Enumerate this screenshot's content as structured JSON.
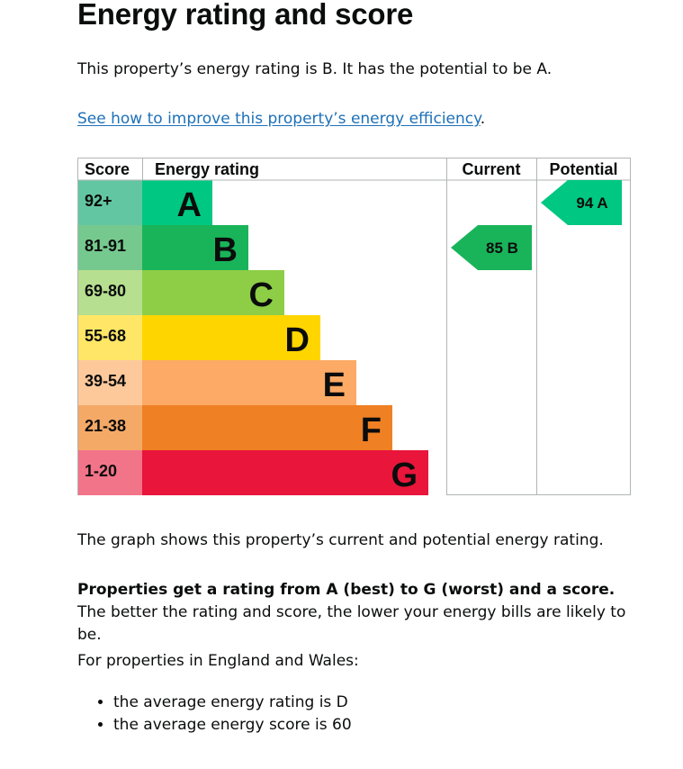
{
  "page": {
    "title": "Energy rating and score",
    "intro": "This property’s energy rating is B. It has the potential to be A.",
    "link_text": "See how to improve this property’s energy efficiency",
    "link_suffix": ".",
    "graph_caption": "The graph shows this property’s current and potential energy rating.",
    "ratings_bold": "Properties get a rating from A (best) to G (worst) and a score.",
    "ratings_rest": " The better the rating and score, the lower your energy bills are likely to be.",
    "region_intro": "For properties in England and Wales:",
    "bullets": [
      "the average energy rating is D",
      "the average energy score is 60"
    ]
  },
  "chart_data": {
    "type": "bar",
    "headers": {
      "score": "Score",
      "rating": "Energy rating",
      "current": "Current",
      "potential": "Potential"
    },
    "bands": [
      {
        "letter": "A",
        "range": "92+",
        "bar_color": "#008054",
        "score_color": "#63c6a3",
        "fill": "#00c781"
      },
      {
        "letter": "B",
        "range": "81-91",
        "bar_color": "#19b459",
        "score_color": "#76c98e",
        "fill": "#19b459"
      },
      {
        "letter": "C",
        "range": "69-80",
        "bar_color": "#8dce46",
        "score_color": "#b7df90",
        "fill": "#8dce46"
      },
      {
        "letter": "D",
        "range": "55-68",
        "bar_color": "#ffd500",
        "score_color": "#ffe666",
        "fill": "#ffd500"
      },
      {
        "letter": "E",
        "range": "39-54",
        "bar_color": "#fcaa65",
        "score_color": "#fdc99b",
        "fill": "#fcaa65"
      },
      {
        "letter": "F",
        "range": "21-38",
        "bar_color": "#ef8023",
        "score_color": "#f5a967",
        "fill": "#ef8023"
      },
      {
        "letter": "G",
        "range": "1-20",
        "bar_color": "#e9153b",
        "score_color": "#f27489",
        "fill": "#e9153b"
      }
    ],
    "current": {
      "score": 85,
      "letter": "B",
      "label": "85  B",
      "color": "#19b459"
    },
    "potential": {
      "score": 94,
      "letter": "A",
      "label": "94  A",
      "color": "#00c781"
    }
  }
}
